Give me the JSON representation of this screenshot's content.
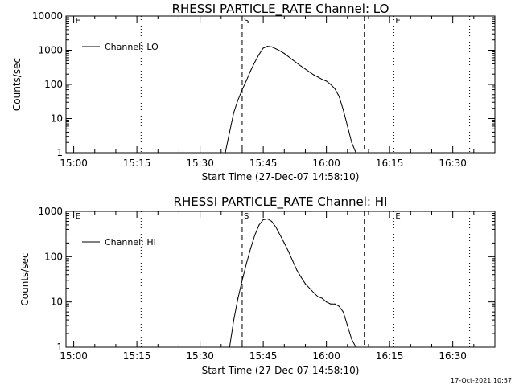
{
  "footer": {
    "timestamp": "17-Oct-2021 10:57"
  },
  "chart_data": [
    {
      "type": "line",
      "title": "RHESSI PARTICLE_RATE Channel: LO",
      "xlabel": "Start Time (27-Dec-07 14:58:10)",
      "ylabel": "Counts/sec",
      "yscale": "log",
      "ylim": [
        1,
        10000
      ],
      "xlim": [
        "14:58:10",
        "16:40:00"
      ],
      "x_ticks": [
        "15:00",
        "15:15",
        "15:30",
        "15:45",
        "16:00",
        "16:15",
        "16:30"
      ],
      "y_ticks": [
        "1",
        "10",
        "100",
        "1000",
        "10000"
      ],
      "legend": "top-left",
      "markers": {
        "dotted_lines": [
          "15:16",
          "16:16",
          "16:34"
        ],
        "dashed_lines": [
          "15:40",
          "16:09"
        ],
        "labels": [
          {
            "text": "E",
            "at": "15:00"
          },
          {
            "text": "S",
            "at": "15:40"
          },
          {
            "text": "E",
            "at": "16:16"
          }
        ]
      },
      "series": [
        {
          "name": "Channel: LO",
          "x": [
            "15:36",
            "15:37",
            "15:38",
            "15:39",
            "15:40",
            "15:41",
            "15:42",
            "15:43",
            "15:44",
            "15:45",
            "15:46",
            "15:47",
            "15:48",
            "15:49",
            "15:50",
            "15:51",
            "15:52",
            "15:53",
            "15:54",
            "15:55",
            "15:56",
            "15:57",
            "15:58",
            "15:59",
            "16:00",
            "16:01",
            "16:02",
            "16:03",
            "16:04",
            "16:05",
            "16:06",
            "16:07"
          ],
          "values": [
            1,
            4,
            15,
            35,
            70,
            130,
            250,
            450,
            750,
            1150,
            1300,
            1250,
            1100,
            950,
            800,
            650,
            520,
            420,
            340,
            280,
            230,
            190,
            165,
            140,
            125,
            100,
            75,
            45,
            18,
            6,
            2,
            1
          ]
        }
      ]
    },
    {
      "type": "line",
      "title": "RHESSI PARTICLE_RATE Channel: HI",
      "xlabel": "Start Time (27-Dec-07 14:58:10)",
      "ylabel": "Counts/sec",
      "yscale": "log",
      "ylim": [
        1,
        1000
      ],
      "xlim": [
        "14:58:10",
        "16:40:00"
      ],
      "x_ticks": [
        "15:00",
        "15:15",
        "15:30",
        "15:45",
        "16:00",
        "16:15",
        "16:30"
      ],
      "y_ticks": [
        "1",
        "10",
        "100",
        "1000"
      ],
      "legend": "top-left",
      "markers": {
        "dotted_lines": [
          "15:16",
          "16:16",
          "16:34"
        ],
        "dashed_lines": [
          "15:40",
          "16:09"
        ],
        "labels": [
          {
            "text": "E",
            "at": "15:00"
          },
          {
            "text": "S",
            "at": "15:40"
          },
          {
            "text": "E",
            "at": "16:16"
          }
        ]
      },
      "series": [
        {
          "name": "Channel: HI",
          "x": [
            "15:37",
            "15:38",
            "15:39",
            "15:40",
            "15:41",
            "15:42",
            "15:43",
            "15:44",
            "15:45",
            "15:46",
            "15:47",
            "15:48",
            "15:49",
            "15:50",
            "15:51",
            "15:52",
            "15:53",
            "15:54",
            "15:55",
            "15:56",
            "15:57",
            "15:58",
            "15:59",
            "16:00",
            "16:01",
            "16:02",
            "16:03",
            "16:04",
            "16:05",
            "16:06",
            "16:07"
          ],
          "values": [
            1,
            4,
            12,
            30,
            70,
            150,
            300,
            500,
            650,
            680,
            600,
            450,
            300,
            200,
            130,
            80,
            50,
            35,
            25,
            20,
            16,
            13,
            12,
            10,
            9,
            9,
            8,
            6,
            3,
            1.5,
            1
          ]
        }
      ]
    }
  ]
}
